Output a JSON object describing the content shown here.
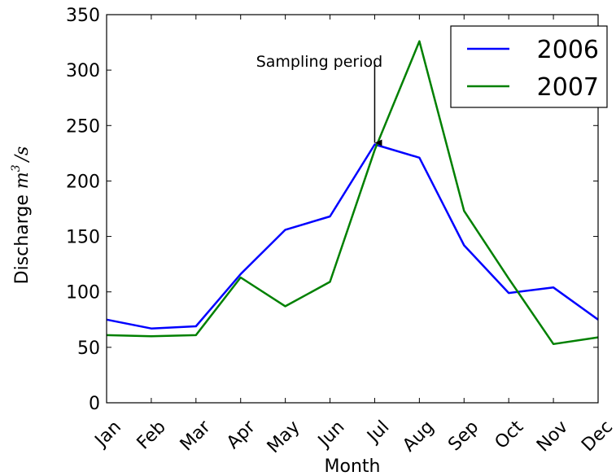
{
  "chart_data": {
    "type": "line",
    "categories": [
      "Jan",
      "Feb",
      "Mar",
      "Apr",
      "May",
      "Jun",
      "Jul",
      "Aug",
      "Sep",
      "Oct",
      "Nov",
      "Dec"
    ],
    "series": [
      {
        "name": "2006",
        "color": "#0000ff",
        "values": [
          75,
          67,
          69,
          116,
          156,
          168,
          233,
          221,
          142,
          99,
          104,
          75
        ]
      },
      {
        "name": "2007",
        "color": "#008000",
        "values": [
          61,
          60,
          61,
          113,
          87,
          109,
          228,
          326,
          173,
          112,
          53,
          59
        ]
      }
    ],
    "xlabel": "Month",
    "ylabel_prefix": "Discharge ",
    "ylabel_math": "m",
    "ylabel_sup": "3",
    "ylabel_suffix": "/s",
    "ylim": [
      0,
      350
    ],
    "yticks": [
      "0",
      "50",
      "100",
      "150",
      "200",
      "250",
      "300",
      "350"
    ],
    "grid": false,
    "legend_position": "top-right",
    "annotation": {
      "text": "Sampling period",
      "target_category": "Jul",
      "target_value": 233,
      "text_value": 300
    }
  }
}
